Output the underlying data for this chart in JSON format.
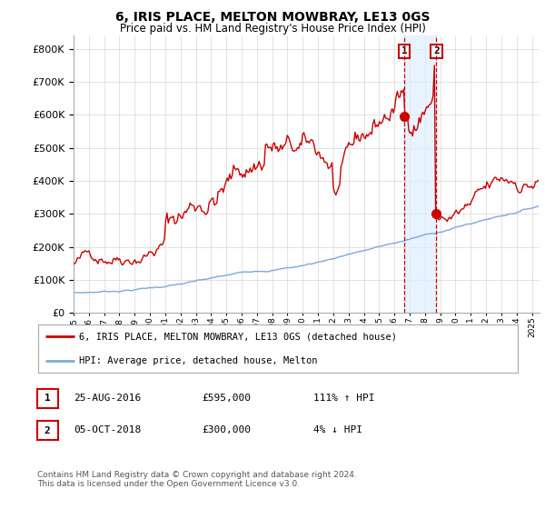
{
  "title": "6, IRIS PLACE, MELTON MOWBRAY, LE13 0GS",
  "subtitle": "Price paid vs. HM Land Registry's House Price Index (HPI)",
  "ytick_values": [
    0,
    100000,
    200000,
    300000,
    400000,
    500000,
    600000,
    700000,
    800000
  ],
  "ylim": [
    0,
    840000
  ],
  "xlim_start": 1995.0,
  "xlim_end": 2025.5,
  "hpi_color": "#7aaadd",
  "price_color": "#cc0000",
  "shade_color": "#ddeeff",
  "marker1_x": 2016.65,
  "marker1_y": 595000,
  "marker2_x": 2018.75,
  "marker2_y": 300000,
  "legend_entry1": "6, IRIS PLACE, MELTON MOWBRAY, LE13 0GS (detached house)",
  "legend_entry2": "HPI: Average price, detached house, Melton",
  "table_row1_num": "1",
  "table_row1_date": "25-AUG-2016",
  "table_row1_price": "£595,000",
  "table_row1_hpi": "111% ↑ HPI",
  "table_row2_num": "2",
  "table_row2_date": "05-OCT-2018",
  "table_row2_price": "£300,000",
  "table_row2_hpi": "4% ↓ HPI",
  "footer": "Contains HM Land Registry data © Crown copyright and database right 2024.\nThis data is licensed under the Open Government Licence v3.0.",
  "background_color": "#ffffff",
  "grid_color": "#dddddd"
}
